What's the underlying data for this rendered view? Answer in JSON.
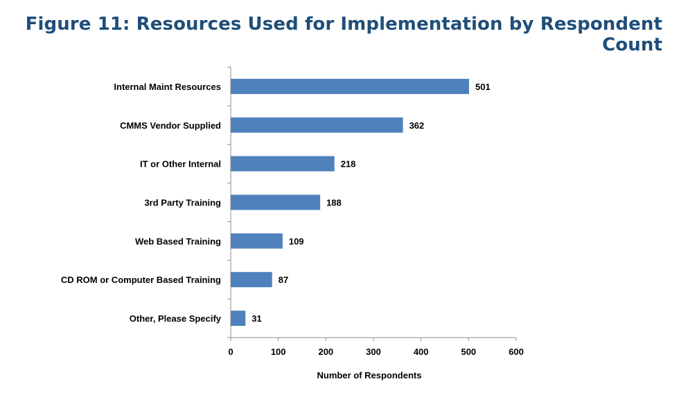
{
  "chart_data": {
    "type": "bar",
    "orientation": "horizontal",
    "title": "Figure 11: Resources Used for Implementation by Respondent Count",
    "xlabel": "Number of Respondents",
    "ylabel": "",
    "categories": [
      "Internal Maint Resources",
      "CMMS Vendor Supplied",
      "IT or Other Internal",
      "3rd Party Training",
      "Web Based Training",
      "CD ROM or Computer Based Training",
      "Other, Please Specify"
    ],
    "values": [
      501,
      362,
      218,
      188,
      109,
      87,
      31
    ],
    "xlim": [
      0,
      600
    ],
    "xticks": [
      "0",
      "100",
      "200",
      "300",
      "400",
      "500",
      "600"
    ],
    "bar_color": "#4f81bd",
    "grid": false,
    "legend": "none"
  }
}
